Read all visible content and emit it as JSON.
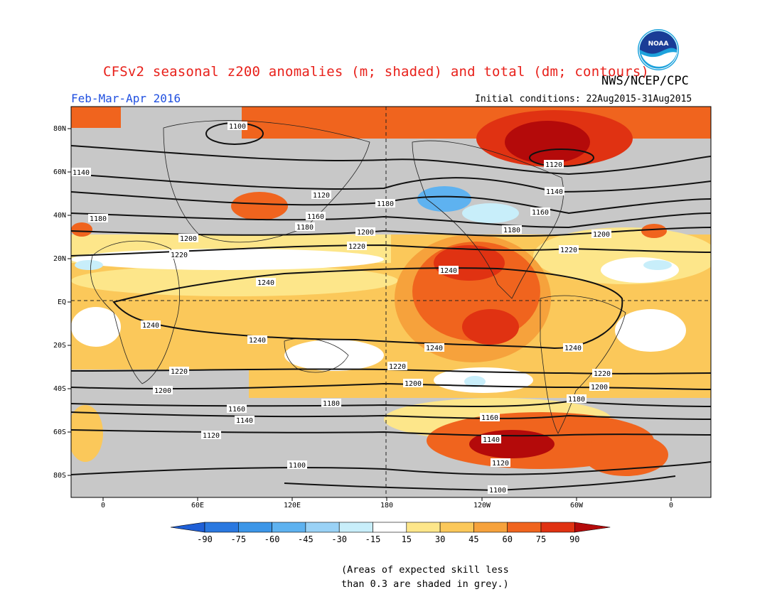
{
  "header": {
    "title": "CFSv2 seasonal z200 anomalies (m; shaded) and total (dm; contours)",
    "agency": "NWS/NCEP/CPC",
    "period": "Feb-Mar-Apr 2016",
    "initial_conditions": "Initial conditions: 22Aug2015-31Aug2015",
    "logo_text": "NOAA"
  },
  "map": {
    "projection": "equirectangular",
    "lat_ticks": [
      "80N",
      "60N",
      "40N",
      "20N",
      "EQ",
      "20S",
      "40S",
      "60S",
      "80S"
    ],
    "lon_ticks": [
      "0",
      "60E",
      "120E",
      "180",
      "120W",
      "60W",
      "0"
    ],
    "skill_mask_color": "#c8c8c8",
    "contour_labels": [
      {
        "value": "1100"
      },
      {
        "value": "1120"
      },
      {
        "value": "1140"
      },
      {
        "value": "1160"
      },
      {
        "value": "1180"
      },
      {
        "value": "1200"
      },
      {
        "value": "1220"
      },
      {
        "value": "1240"
      }
    ]
  },
  "colorbar": {
    "labels": [
      "-90",
      "-75",
      "-60",
      "-45",
      "-30",
      "-15",
      "15",
      "30",
      "45",
      "60",
      "75",
      "90"
    ],
    "colors": [
      "#1f5fd6",
      "#2a78e0",
      "#3c96e8",
      "#5eb2f0",
      "#9ad2f6",
      "#c8eefa",
      "#ffffff",
      "#fde68a",
      "#fbc85a",
      "#f6a23c",
      "#f0641e",
      "#e03212",
      "#b40a0a"
    ]
  },
  "footer": {
    "note_line1": "(Areas of expected skill less",
    "note_line2": "than 0.3 are shaded in grey.)"
  }
}
